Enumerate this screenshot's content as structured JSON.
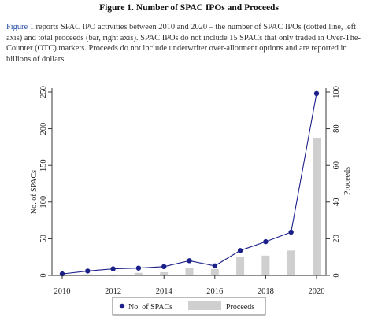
{
  "figure_title": "Figure 1. Number of SPAC IPOs and Proceeds",
  "caption": {
    "ref": "Figure 1",
    "text": " reports SPAC IPO activities between 2010 and 2020 – the number of SPAC IPOs (dotted line, left axis) and total proceeds (bar, right axis). SPAC IPOs do not include 15 SPACs that only traded in Over-The-Counter (OTC) markets. Proceeds do not include underwriter over-allotment options and are reported in billions of dollars."
  },
  "chart_data": {
    "type": "bar+line",
    "x": [
      2010,
      2011,
      2012,
      2013,
      2014,
      2015,
      2016,
      2017,
      2018,
      2019,
      2020
    ],
    "x_ticks": [
      2010,
      2012,
      2014,
      2016,
      2018,
      2020
    ],
    "series": [
      {
        "name": "No. of SPACs",
        "type": "line",
        "axis": "left",
        "values": [
          2,
          6,
          9,
          10,
          12,
          20,
          13,
          34,
          46,
          59,
          248
        ],
        "color": "#1b1f8a"
      },
      {
        "name": "Proceeds",
        "type": "bar",
        "axis": "right",
        "values": [
          0.1,
          0.6,
          0.5,
          1.4,
          1.7,
          3.9,
          3.5,
          10.1,
          10.8,
          13.6,
          75.0
        ],
        "color": "#cfcfcf"
      }
    ],
    "left_axis": {
      "label": "No. of SPACs",
      "ylim": [
        0,
        250
      ],
      "ticks": [
        0,
        50,
        100,
        150,
        200,
        250
      ]
    },
    "right_axis": {
      "label": "Proceeds",
      "ylim": [
        0,
        100
      ],
      "ticks": [
        0,
        20,
        40,
        60,
        80,
        100
      ]
    },
    "grid": false,
    "legend_position": "bottom"
  }
}
